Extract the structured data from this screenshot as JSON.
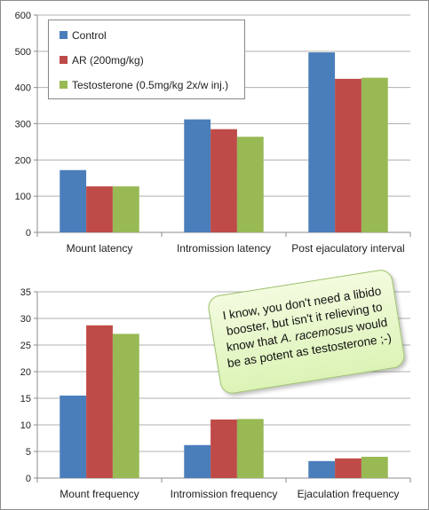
{
  "colors": {
    "control": "#4a7ebb",
    "ar": "#be4b48",
    "testosterone": "#98b954",
    "grid": "#b0b0b0",
    "axis": "#8c8c8c"
  },
  "legend": {
    "control": "Control",
    "ar": "AR (200mg/kg)",
    "testosterone": "Testosterone (0.5mg/kg  2x/w inj.)"
  },
  "note": {
    "line1": "I know, you don't need a libido",
    "line2": "booster, but isn't it relieving to",
    "line3": "know that ",
    "species": "A. racemosus",
    "line3b": " would",
    "line4": "be as potent as testosterone ;-)"
  },
  "chart_data": [
    {
      "type": "bar",
      "categories": [
        "Mount latency",
        "Intromission latency",
        "Post ejaculatory interval"
      ],
      "series": [
        {
          "name": "Control",
          "values": [
            172,
            312,
            497
          ]
        },
        {
          "name": "AR (200mg/kg)",
          "values": [
            127,
            285,
            424
          ]
        },
        {
          "name": "Testosterone (0.5mg/kg  2x/w inj.)",
          "values": [
            127,
            264,
            427
          ]
        }
      ],
      "ylim": [
        0,
        600
      ],
      "yticks": [
        0,
        100,
        200,
        300,
        400,
        500,
        600
      ],
      "grid": true,
      "legend": "top-left"
    },
    {
      "type": "bar",
      "categories": [
        "Mount frequency",
        "Intromission frequency",
        "Ejaculation frequency"
      ],
      "series": [
        {
          "name": "Control",
          "values": [
            15.5,
            6.2,
            3.2
          ]
        },
        {
          "name": "AR (200mg/kg)",
          "values": [
            28.7,
            11.0,
            3.7
          ]
        },
        {
          "name": "Testosterone (0.5mg/kg  2x/w inj.)",
          "values": [
            27.1,
            11.1,
            4.0
          ]
        }
      ],
      "ylim": [
        0,
        35
      ],
      "yticks": [
        0,
        5,
        10,
        15,
        20,
        25,
        30,
        35
      ],
      "grid": true
    }
  ]
}
